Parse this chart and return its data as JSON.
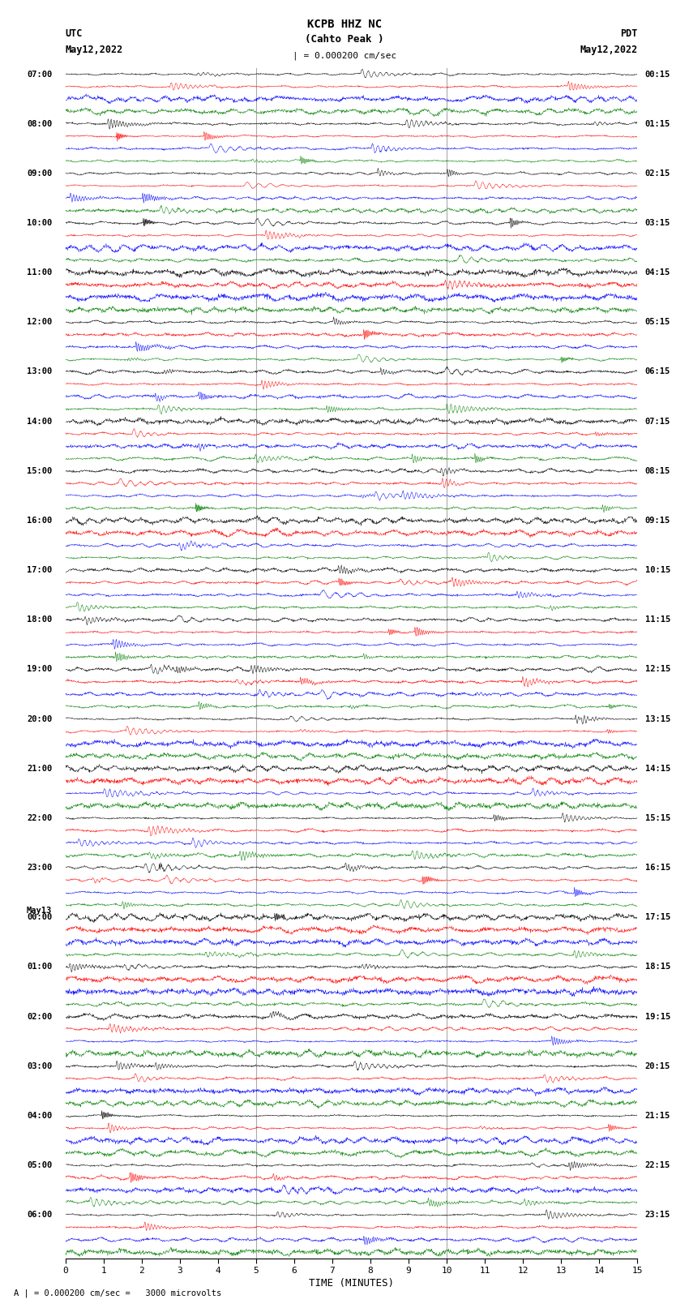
{
  "title_line1": "KCPB HHZ NC",
  "title_line2": "(Cahto Peak )",
  "scale_label": "| = 0.000200 cm/sec",
  "left_label_top": "UTC",
  "left_label_date": "May12,2022",
  "right_label_top": "PDT",
  "right_label_date": "May12,2022",
  "bottom_label": "TIME (MINUTES)",
  "bottom_note": "A | = 0.000200 cm/sec =   3000 microvolts",
  "x_min": 0,
  "x_max": 15,
  "x_ticks": [
    0,
    1,
    2,
    3,
    4,
    5,
    6,
    7,
    8,
    9,
    10,
    11,
    12,
    13,
    14,
    15
  ],
  "utc_labels": [
    {
      "idx": 0,
      "label": "07:00",
      "extra": null
    },
    {
      "idx": 4,
      "label": "08:00",
      "extra": null
    },
    {
      "idx": 8,
      "label": "09:00",
      "extra": null
    },
    {
      "idx": 12,
      "label": "10:00",
      "extra": null
    },
    {
      "idx": 16,
      "label": "11:00",
      "extra": null
    },
    {
      "idx": 20,
      "label": "12:00",
      "extra": null
    },
    {
      "idx": 24,
      "label": "13:00",
      "extra": null
    },
    {
      "idx": 28,
      "label": "14:00",
      "extra": null
    },
    {
      "idx": 32,
      "label": "15:00",
      "extra": null
    },
    {
      "idx": 36,
      "label": "16:00",
      "extra": null
    },
    {
      "idx": 40,
      "label": "17:00",
      "extra": null
    },
    {
      "idx": 44,
      "label": "18:00",
      "extra": null
    },
    {
      "idx": 48,
      "label": "19:00",
      "extra": null
    },
    {
      "idx": 52,
      "label": "20:00",
      "extra": null
    },
    {
      "idx": 56,
      "label": "21:00",
      "extra": null
    },
    {
      "idx": 60,
      "label": "22:00",
      "extra": null
    },
    {
      "idx": 64,
      "label": "23:00",
      "extra": null
    },
    {
      "idx": 68,
      "label": "00:00",
      "extra": "May13"
    },
    {
      "idx": 72,
      "label": "01:00",
      "extra": null
    },
    {
      "idx": 76,
      "label": "02:00",
      "extra": null
    },
    {
      "idx": 80,
      "label": "03:00",
      "extra": null
    },
    {
      "idx": 84,
      "label": "04:00",
      "extra": null
    },
    {
      "idx": 88,
      "label": "05:00",
      "extra": null
    },
    {
      "idx": 92,
      "label": "06:00",
      "extra": null
    }
  ],
  "pdt_labels": [
    {
      "idx": 0,
      "label": "00:15"
    },
    {
      "idx": 4,
      "label": "01:15"
    },
    {
      "idx": 8,
      "label": "02:15"
    },
    {
      "idx": 12,
      "label": "03:15"
    },
    {
      "idx": 16,
      "label": "04:15"
    },
    {
      "idx": 20,
      "label": "05:15"
    },
    {
      "idx": 24,
      "label": "06:15"
    },
    {
      "idx": 28,
      "label": "07:15"
    },
    {
      "idx": 32,
      "label": "08:15"
    },
    {
      "idx": 36,
      "label": "09:15"
    },
    {
      "idx": 40,
      "label": "10:15"
    },
    {
      "idx": 44,
      "label": "11:15"
    },
    {
      "idx": 48,
      "label": "12:15"
    },
    {
      "idx": 52,
      "label": "13:15"
    },
    {
      "idx": 56,
      "label": "14:15"
    },
    {
      "idx": 60,
      "label": "15:15"
    },
    {
      "idx": 64,
      "label": "16:15"
    },
    {
      "idx": 68,
      "label": "17:15"
    },
    {
      "idx": 72,
      "label": "18:15"
    },
    {
      "idx": 76,
      "label": "19:15"
    },
    {
      "idx": 80,
      "label": "20:15"
    },
    {
      "idx": 84,
      "label": "21:15"
    },
    {
      "idx": 88,
      "label": "22:15"
    },
    {
      "idx": 92,
      "label": "23:15"
    }
  ],
  "colors": [
    "black",
    "red",
    "blue",
    "green"
  ],
  "n_rows": 96,
  "background_color": "white",
  "trace_amplitude": 0.42,
  "noise_seed": 42,
  "vline_color": "#aaaaaa",
  "vline_positions": [
    5,
    10
  ]
}
